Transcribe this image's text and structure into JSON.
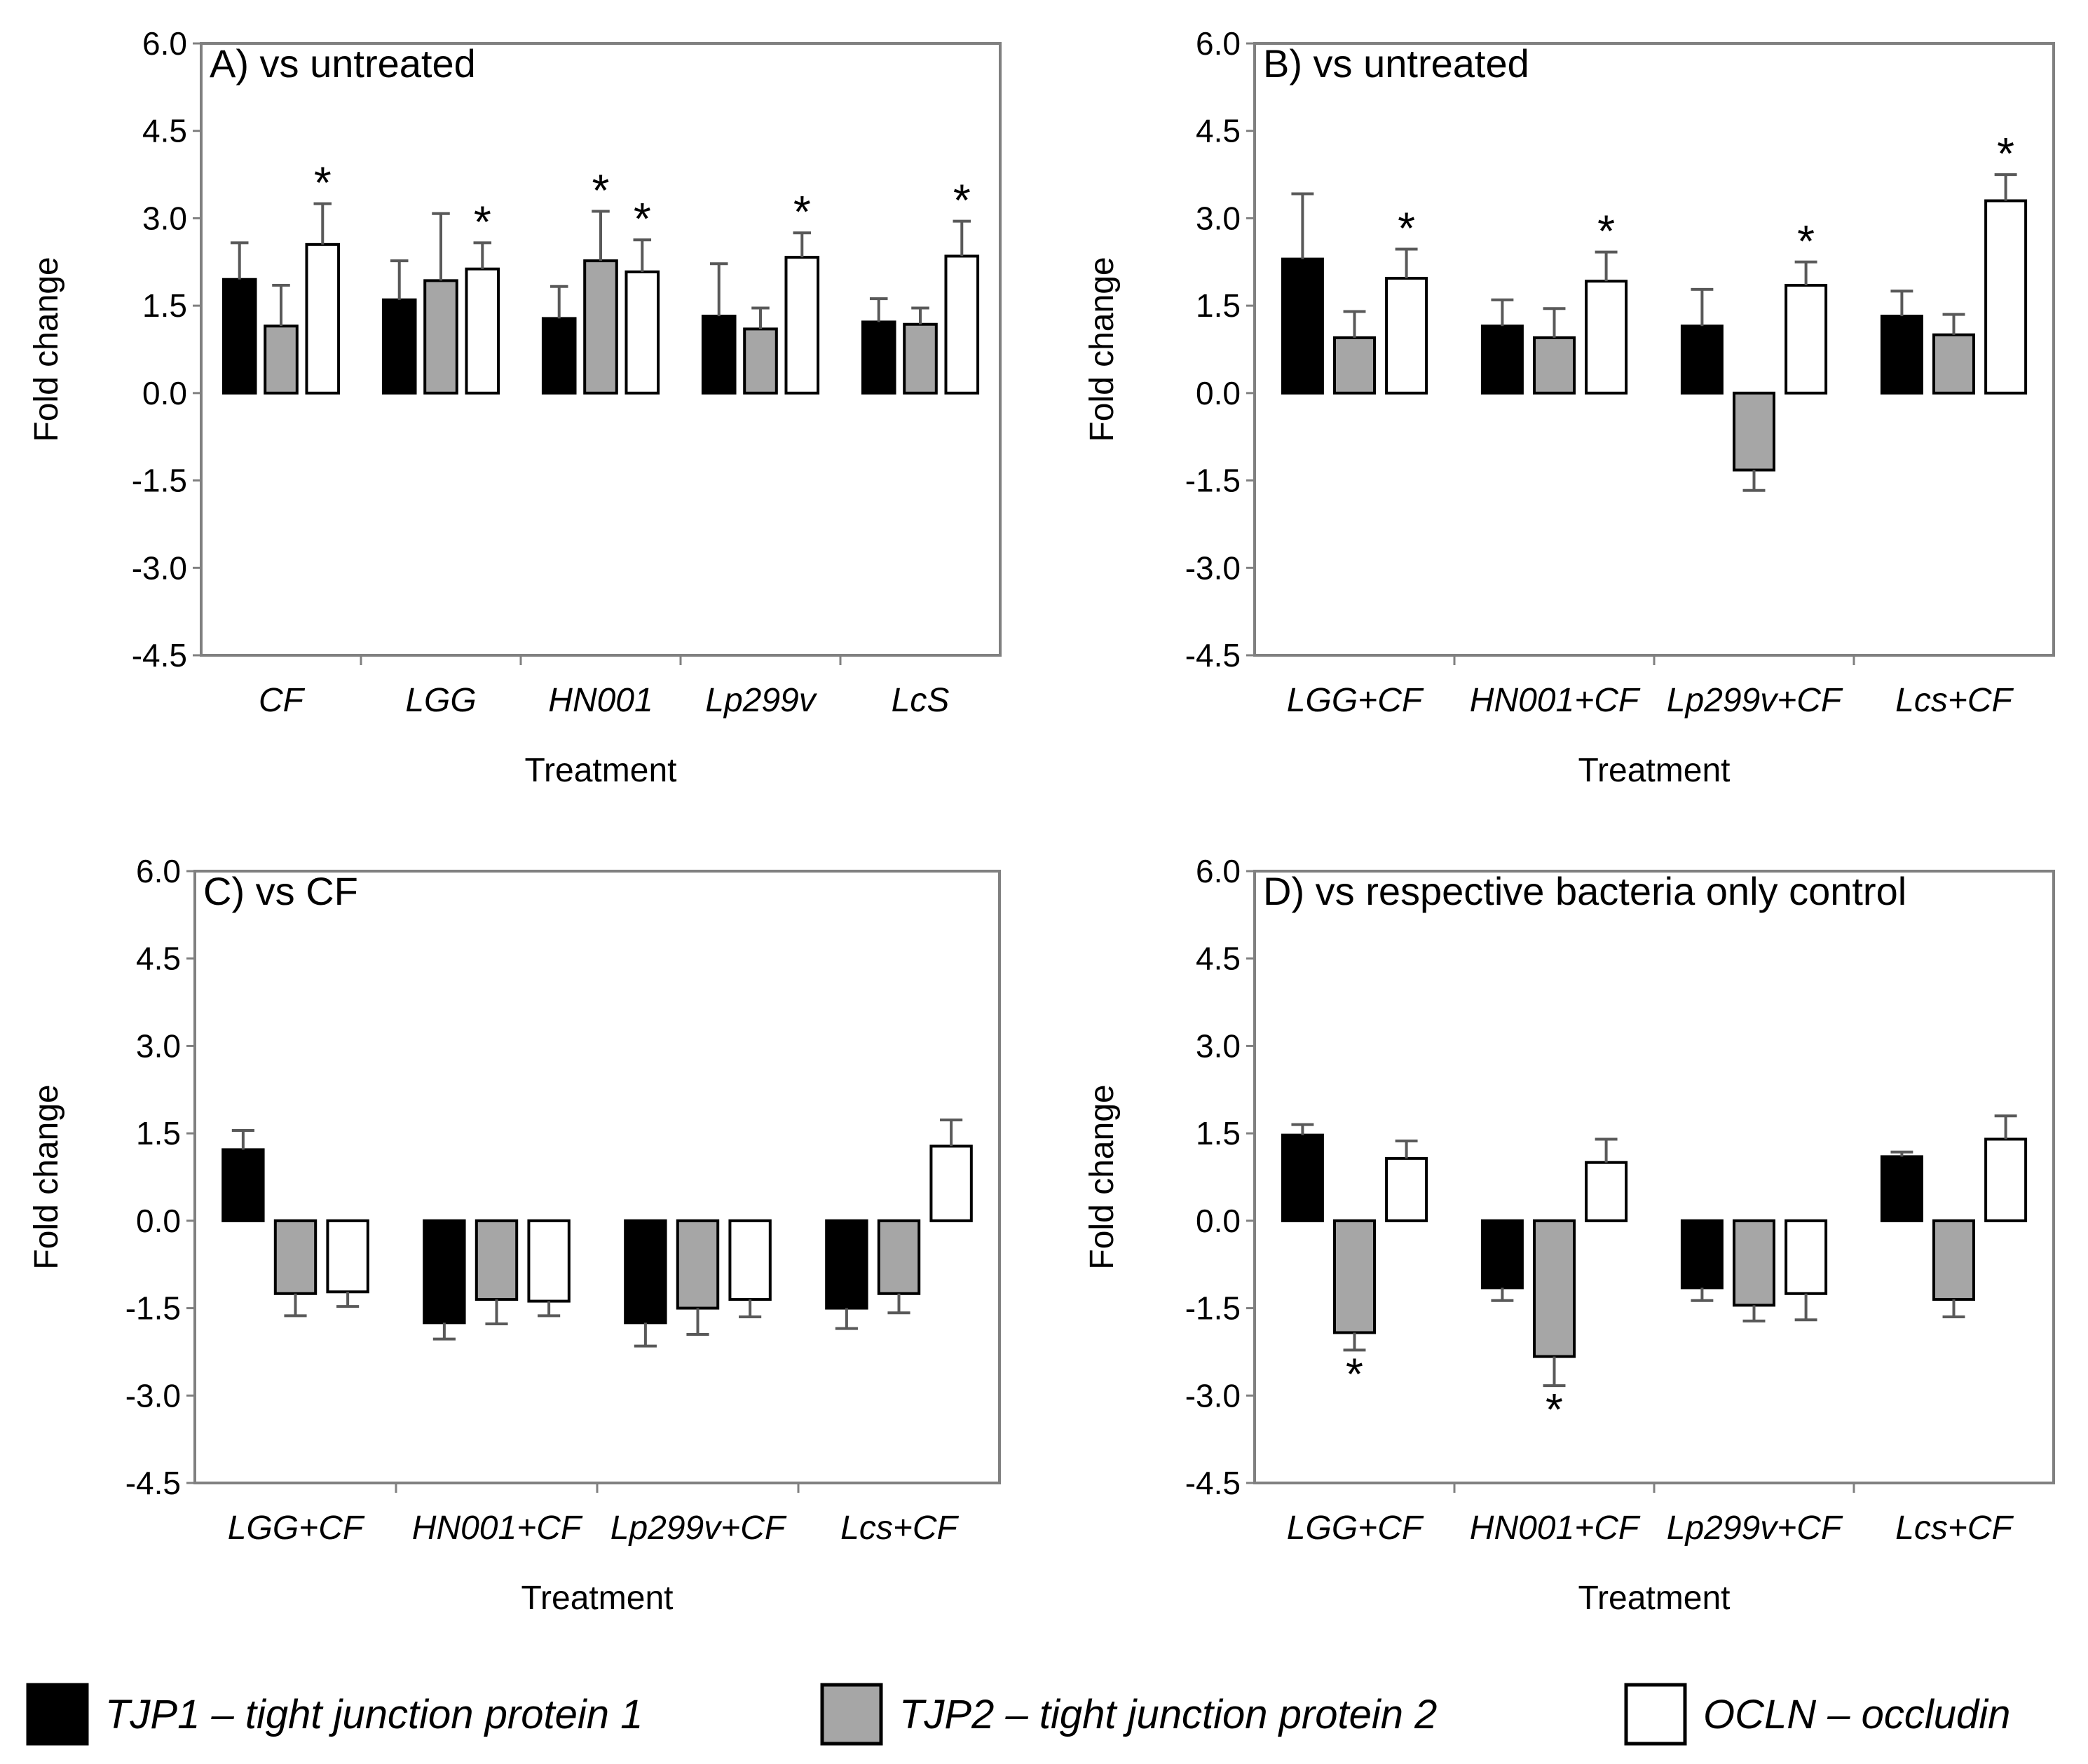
{
  "figure": {
    "colors": {
      "TJP1": "#000000",
      "TJP2": "#a6a6a6",
      "OCLN": "#ffffff",
      "axis": "#808080"
    },
    "legend": [
      {
        "key": "TJP1",
        "label": "TJP1 – tight junction protein 1"
      },
      {
        "key": "TJP2",
        "label": "TJP2 – tight junction protein 2"
      },
      {
        "key": "OCLN",
        "label": "OCLN – occludin"
      }
    ]
  },
  "chart_data": [
    {
      "type": "bar",
      "title": "A) vs untreated",
      "xlabel": "Treatment",
      "ylabel": "Fold change",
      "ylim": [
        -4.5,
        6.0
      ],
      "yticks": [
        "6.0",
        "4.5",
        "3.0",
        "1.5",
        "0.0",
        "-1.5",
        "-3.0",
        "-4.5"
      ],
      "categories": [
        "CF",
        "LGG",
        "HN001",
        "Lp299v",
        "LcS"
      ],
      "series": [
        {
          "name": "TJP1",
          "values": [
            1.95,
            1.6,
            1.28,
            1.32,
            1.22
          ],
          "errors": [
            0.63,
            0.67,
            0.55,
            0.9,
            0.4
          ]
        },
        {
          "name": "TJP2",
          "values": [
            1.15,
            1.93,
            2.27,
            1.1,
            1.18
          ],
          "errors": [
            0.7,
            1.15,
            0.85,
            0.36,
            0.28
          ]
        },
        {
          "name": "OCLN",
          "values": [
            2.55,
            2.13,
            2.08,
            2.33,
            2.35
          ],
          "errors": [
            0.7,
            0.45,
            0.55,
            0.42,
            0.6
          ]
        }
      ],
      "significance": [
        {
          "category": 0,
          "series": 2,
          "label": "*"
        },
        {
          "category": 1,
          "series": 2,
          "label": "*"
        },
        {
          "category": 2,
          "series": 1,
          "label": "*"
        },
        {
          "category": 2,
          "series": 2,
          "label": "*"
        },
        {
          "category": 3,
          "series": 2,
          "label": "*"
        },
        {
          "category": 4,
          "series": 2,
          "label": "*"
        }
      ]
    },
    {
      "type": "bar",
      "title": "B) vs untreated",
      "xlabel": "Treatment",
      "ylabel": "Fold change",
      "ylim": [
        -4.5,
        6.0
      ],
      "yticks": [
        "6.0",
        "4.5",
        "3.0",
        "1.5",
        "0.0",
        "-1.5",
        "-3.0",
        "-4.5"
      ],
      "categories": [
        "LGG+CF",
        "HN001+CF",
        "Lp299v+CF",
        "Lcs+CF"
      ],
      "series": [
        {
          "name": "TJP1",
          "values": [
            2.3,
            1.15,
            1.15,
            1.32
          ],
          "errors": [
            1.12,
            0.45,
            0.63,
            0.43
          ]
        },
        {
          "name": "TJP2",
          "values": [
            0.95,
            0.95,
            -1.32,
            1.0
          ],
          "errors": [
            0.45,
            0.5,
            0.35,
            0.35
          ]
        },
        {
          "name": "OCLN",
          "values": [
            1.97,
            1.92,
            1.85,
            3.3
          ],
          "errors": [
            0.5,
            0.5,
            0.4,
            0.45
          ]
        }
      ],
      "significance": [
        {
          "category": 0,
          "series": 2,
          "label": "*"
        },
        {
          "category": 1,
          "series": 2,
          "label": "*"
        },
        {
          "category": 2,
          "series": 2,
          "label": "*"
        },
        {
          "category": 3,
          "series": 2,
          "label": "*"
        }
      ]
    },
    {
      "type": "bar",
      "title": "C) vs CF",
      "xlabel": "Treatment",
      "ylabel": "Fold change",
      "ylim": [
        -4.5,
        6.0
      ],
      "yticks": [
        "6.0",
        "4.5",
        "3.0",
        "1.5",
        "0.0",
        "-1.5",
        "-3.0",
        "-4.5"
      ],
      "categories": [
        "LGG+CF",
        "HN001+CF",
        "Lp299v+CF",
        "Lcs+CF"
      ],
      "series": [
        {
          "name": "TJP1",
          "values": [
            1.22,
            -1.75,
            -1.75,
            -1.5
          ],
          "errors": [
            0.33,
            0.28,
            0.4,
            0.35
          ]
        },
        {
          "name": "TJP2",
          "values": [
            -1.25,
            -1.35,
            -1.5,
            -1.25
          ],
          "errors": [
            0.38,
            0.42,
            0.45,
            0.33
          ]
        },
        {
          "name": "OCLN",
          "values": [
            -1.22,
            -1.38,
            -1.35,
            1.28
          ],
          "errors": [
            0.25,
            0.25,
            0.3,
            0.45
          ]
        }
      ],
      "significance": []
    },
    {
      "type": "bar",
      "title": "D) vs respective bacteria only control",
      "xlabel": "Treatment",
      "ylabel": "Fold change",
      "ylim": [
        -4.5,
        6.0
      ],
      "yticks": [
        "6.0",
        "4.5",
        "3.0",
        "1.5",
        "0.0",
        "-1.5",
        "-3.0",
        "-4.5"
      ],
      "categories": [
        "LGG+CF",
        "HN001+CF",
        "Lp299v+CF",
        "Lcs+CF"
      ],
      "series": [
        {
          "name": "TJP1",
          "values": [
            1.47,
            -1.15,
            -1.15,
            1.1
          ],
          "errors": [
            0.18,
            0.22,
            0.22,
            0.08
          ]
        },
        {
          "name": "TJP2",
          "values": [
            -1.92,
            -2.33,
            -1.45,
            -1.35
          ],
          "errors": [
            0.3,
            0.5,
            0.27,
            0.3
          ]
        },
        {
          "name": "OCLN",
          "values": [
            1.07,
            1.0,
            -1.25,
            1.4
          ],
          "errors": [
            0.3,
            0.4,
            0.45,
            0.4
          ]
        }
      ],
      "significance": [
        {
          "category": 0,
          "series": 1,
          "label": "*"
        },
        {
          "category": 1,
          "series": 1,
          "label": "*"
        }
      ]
    }
  ]
}
